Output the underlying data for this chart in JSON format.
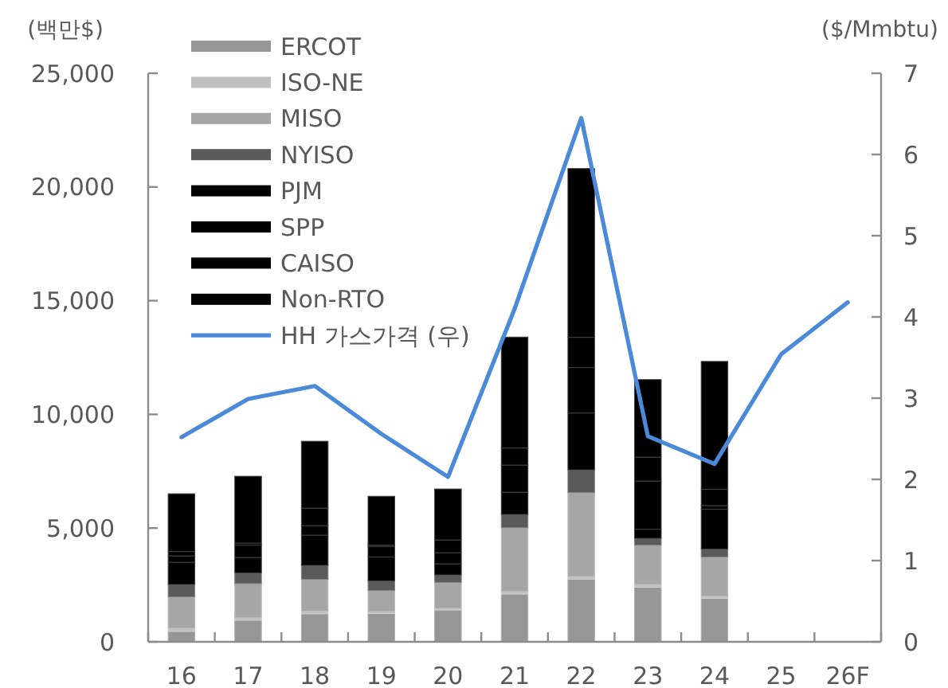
{
  "chart_data": {
    "type": "bar",
    "stacked": true,
    "categories": [
      "16",
      "17",
      "18",
      "19",
      "20",
      "21",
      "22",
      "23",
      "24",
      "25",
      "26F"
    ],
    "series": [
      {
        "name": "ERCOT",
        "color": "#969696",
        "values": [
          460,
          950,
          1230,
          1240,
          1400,
          2100,
          2750,
          2400,
          1910,
          null,
          null
        ]
      },
      {
        "name": "ISO-NE",
        "color": "#c0c0c0",
        "values": [
          140,
          120,
          120,
          90,
          70,
          120,
          120,
          120,
          90,
          null,
          null
        ]
      },
      {
        "name": "MISO",
        "color": "#a6a6a6",
        "values": [
          1380,
          1490,
          1400,
          930,
          1140,
          2800,
          3690,
          1730,
          1730,
          null,
          null
        ]
      },
      {
        "name": "NYISO",
        "color": "#5a5a5a",
        "values": [
          540,
          470,
          610,
          420,
          330,
          580,
          1000,
          300,
          350,
          null,
          null
        ]
      },
      {
        "name": "PJM",
        "color": "#000000",
        "values": [
          980,
          680,
          1330,
          1050,
          490,
          980,
          2500,
          400,
          1750,
          null,
          null
        ]
      },
      {
        "name": "SPP",
        "color": "#000000",
        "values": [
          280,
          540,
          420,
          470,
          490,
          1190,
          2000,
          2120,
          160,
          null,
          null
        ]
      },
      {
        "name": "CAISO",
        "color": "#000000",
        "values": [
          190,
          90,
          770,
          50,
          560,
          750,
          1330,
          1050,
          720,
          null,
          null
        ]
      },
      {
        "name": "Non-RTO",
        "color": "#000000",
        "values": [
          2540,
          2940,
          2940,
          2150,
          2240,
          4880,
          7420,
          3410,
          5620,
          null,
          null
        ]
      },
      {
        "name": "HH 가스가격 (우)",
        "type": "line",
        "axis": "y2",
        "color": "#4a8ad8",
        "values": [
          2.52,
          2.99,
          3.15,
          2.56,
          2.03,
          4.1,
          6.45,
          2.53,
          2.19,
          3.54,
          4.18
        ]
      }
    ],
    "ylabel": "(백만$)",
    "y2label": "($/Mmbtu)",
    "ylim": [
      0,
      25000
    ],
    "yticks": [
      0,
      {
        "value": 5000,
        "label": "5,000"
      },
      {
        "value": 10000,
        "label": "10,000"
      },
      {
        "value": 15000,
        "label": "15,000"
      },
      {
        "value": 20000,
        "label": "20,000"
      },
      {
        "value": 25000,
        "label": "25,000"
      }
    ],
    "y2lim": [
      0,
      7
    ],
    "y2ticks": [
      0,
      1,
      2,
      3,
      4,
      5,
      6,
      7
    ],
    "legend": "top left",
    "grid": false
  }
}
